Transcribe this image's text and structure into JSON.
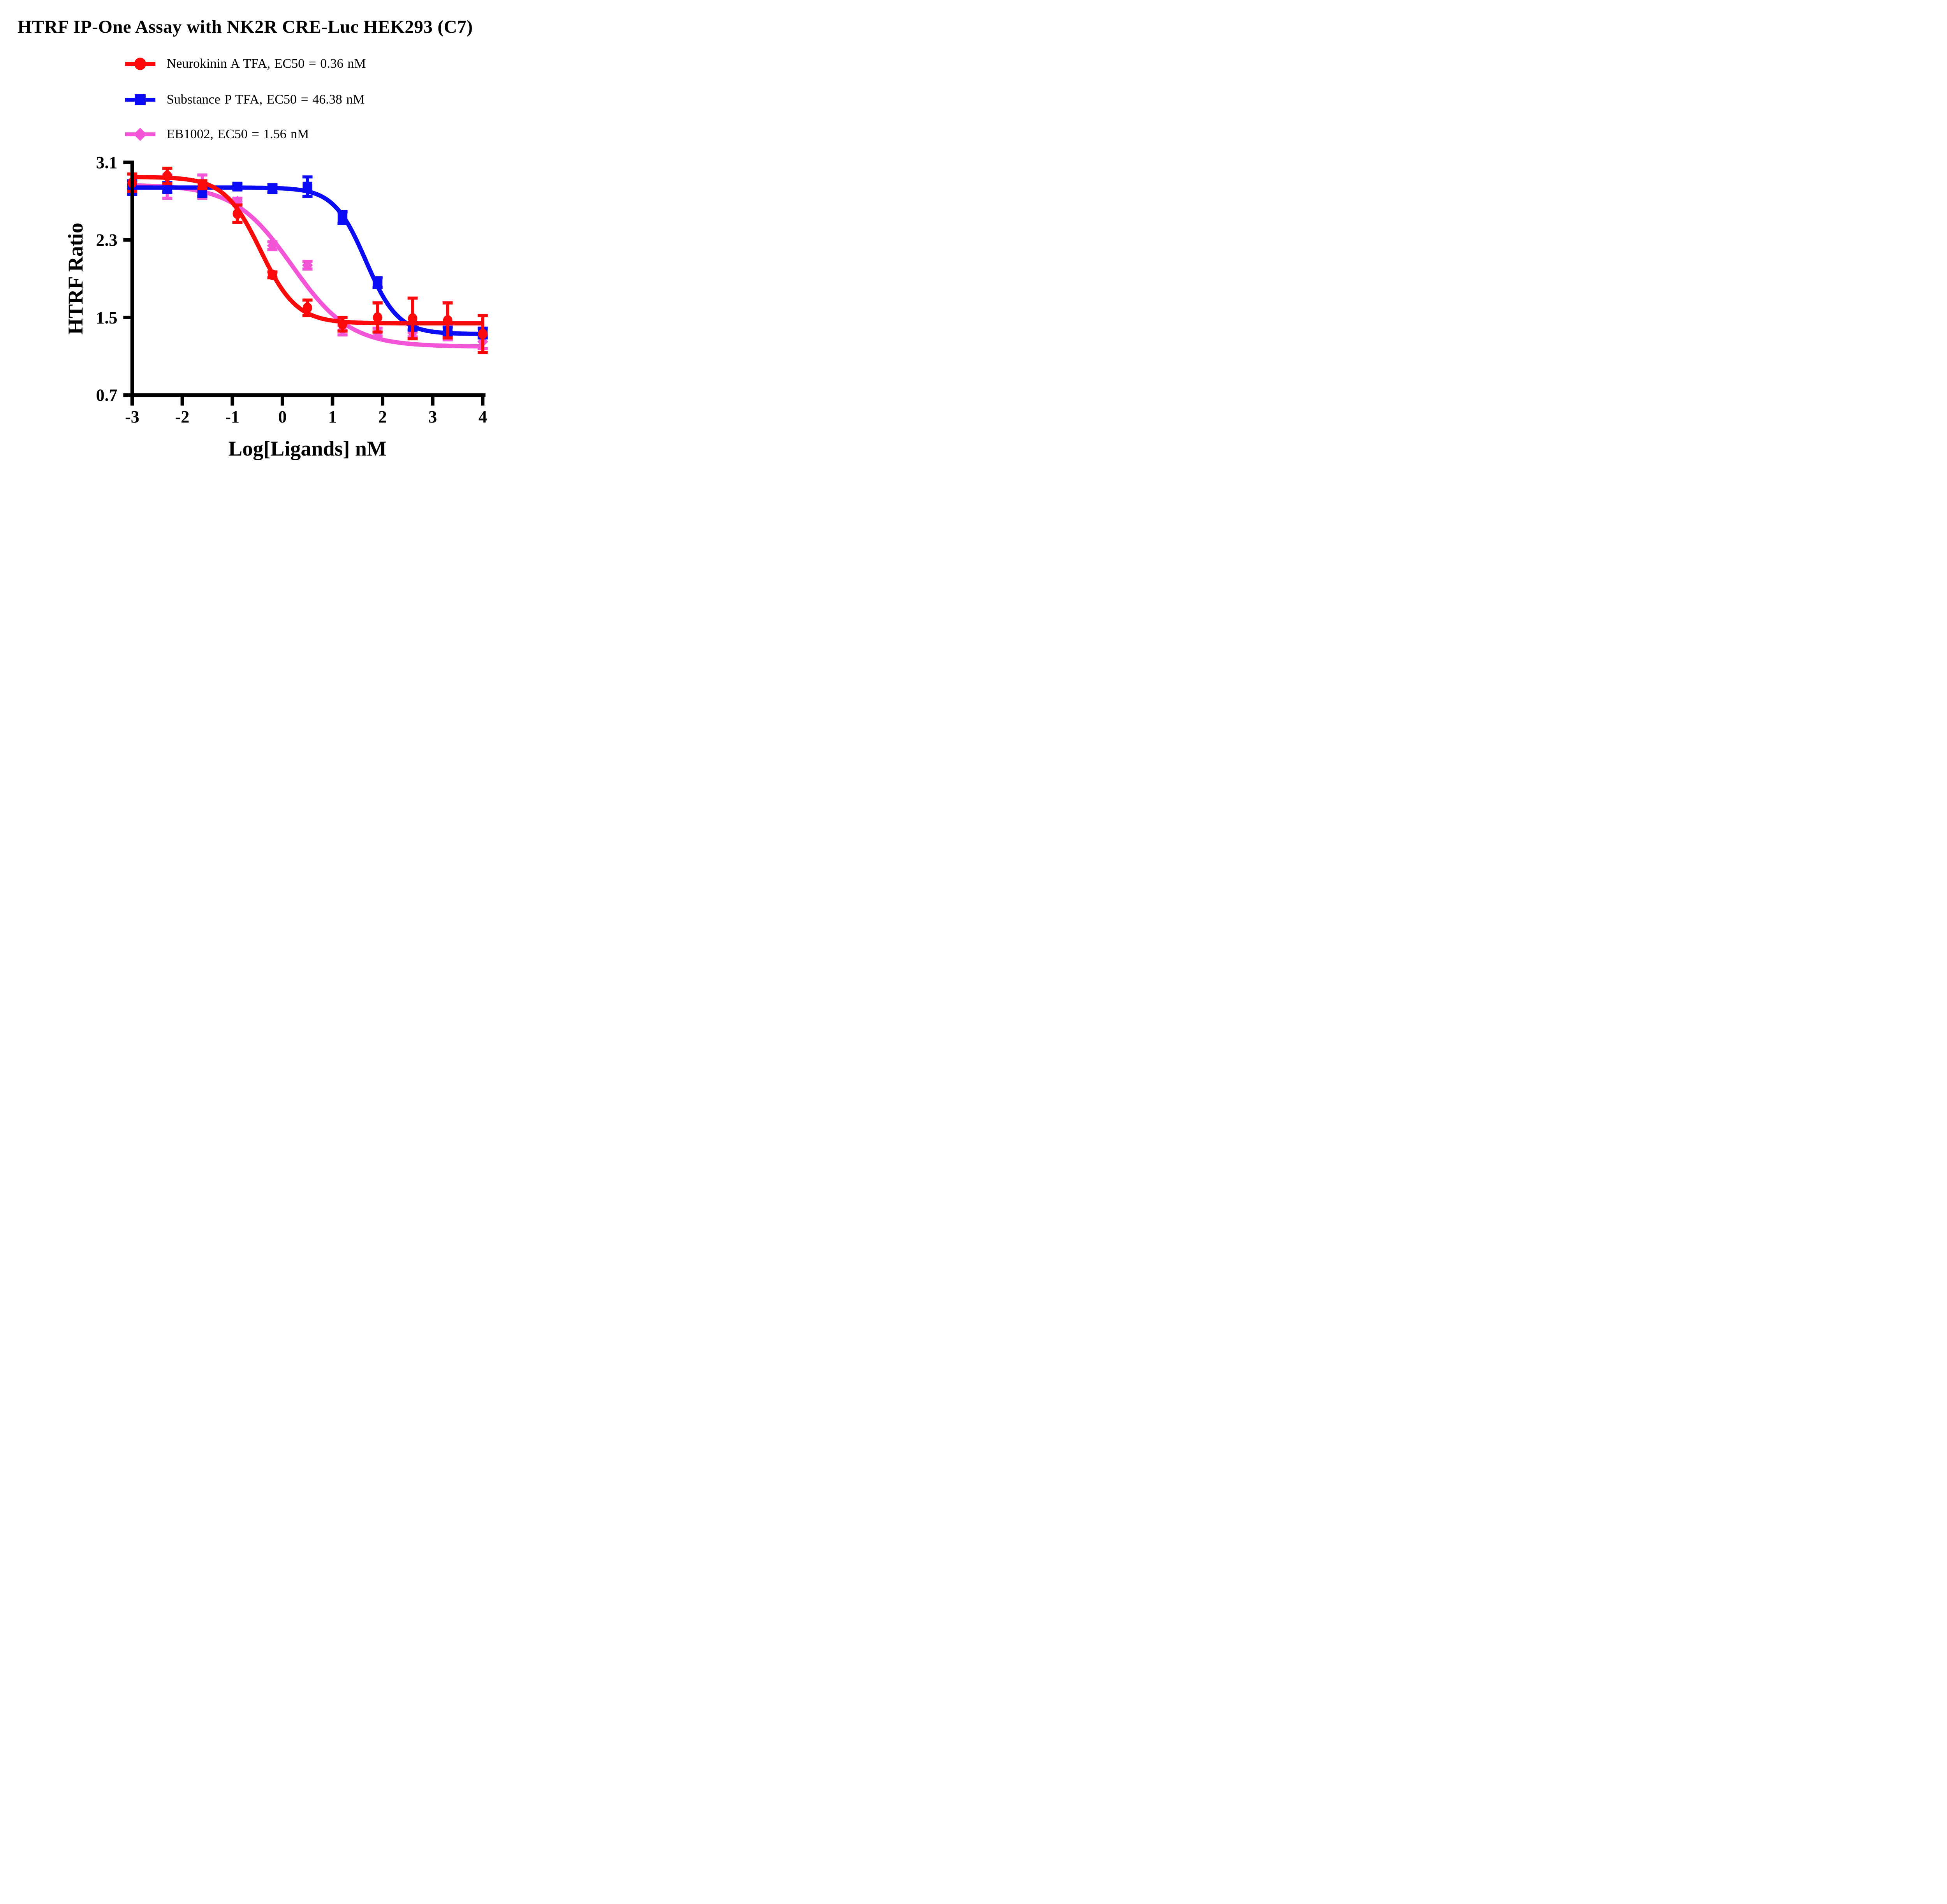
{
  "title": "HTRF IP-One Assay with NK2R CRE-Luc HEK293 (C7)",
  "legend": [
    {
      "label": "Neurokinin A TFA,  EC50 = 0.36 nM"
    },
    {
      "label": "Substance P TFA,  EC50 = 46.38 nM"
    },
    {
      "label": "EB1002,  EC50 = 1.56 nM"
    }
  ],
  "chart_data": {
    "type": "scatter",
    "title": "HTRF IP-One Assay with NK2R CRE-Luc HEK293 (C7)",
    "xlabel": "Log[Ligands] nM",
    "ylabel": "HTRF Ratio",
    "xlim": [
      -3,
      4
    ],
    "ylim": [
      0.7,
      3.1
    ],
    "xtick_values": [
      -3,
      -2,
      -1,
      0,
      1,
      2,
      3,
      4
    ],
    "xtick_labels": [
      "-3",
      "-2",
      "-1",
      "0",
      "1",
      "2",
      "3",
      "4"
    ],
    "ytick_values": [
      3.1,
      2.3,
      1.5,
      0.7
    ],
    "ytick_labels": [
      "3.1",
      "2.3",
      "1.5",
      "0.7"
    ],
    "grid": false,
    "legend_position": "top-left",
    "axis_color": "#000000",
    "x": [
      -3.0,
      -2.3,
      -1.6,
      -0.9,
      -0.2,
      0.5,
      1.2,
      1.9,
      2.6,
      3.3,
      4.0
    ],
    "series": [
      {
        "name": "Neurokinin A TFA",
        "ec50_label": "EC50 = 0.36 nM",
        "ec50_nM": 0.36,
        "color": "#FA0A0A",
        "marker": "circle",
        "values": [
          2.89,
          2.96,
          2.87,
          2.57,
          1.94,
          1.6,
          1.43,
          1.5,
          1.49,
          1.47,
          1.33
        ],
        "errors": [
          0.09,
          0.08,
          0.04,
          0.09,
          0.03,
          0.08,
          0.07,
          0.15,
          0.21,
          0.18,
          0.19
        ],
        "fit": {
          "model": "4PL",
          "top": 2.95,
          "bottom": 1.44,
          "log_ec50": -0.44,
          "hill": 1.2
        }
      },
      {
        "name": "Substance P TFA",
        "ec50_label": "EC50 = 46.38 nM",
        "ec50_nM": 46.38,
        "color": "#0B0BF5",
        "marker": "square",
        "values": [
          2.84,
          2.84,
          2.79,
          2.85,
          2.83,
          2.85,
          2.53,
          1.86,
          1.41,
          1.36,
          1.34
        ],
        "errors": [
          0.07,
          0.05,
          0.04,
          0.03,
          0.04,
          0.1,
          0.06,
          0.05,
          0.04,
          0.04,
          0.05
        ],
        "fit": {
          "model": "4PL",
          "top": 2.84,
          "bottom": 1.33,
          "log_ec50": 1.666,
          "hill": 1.35
        }
      },
      {
        "name": "EB1002",
        "ec50_label": "EC50 = 1.56 nM",
        "ec50_nM": 1.56,
        "color": "#F255D6",
        "marker": "diamond",
        "values": [
          2.83,
          2.85,
          2.85,
          2.7,
          2.24,
          2.04,
          1.37,
          1.35,
          1.34,
          1.31,
          1.25
        ],
        "errors": [
          0.06,
          0.12,
          0.12,
          0.03,
          0.04,
          0.04,
          0.05,
          0.04,
          0.04,
          0.04,
          0.07
        ],
        "fit": {
          "model": "4PL",
          "top": 2.87,
          "bottom": 1.2,
          "log_ec50": 0.193,
          "hill": 0.75
        }
      }
    ]
  }
}
